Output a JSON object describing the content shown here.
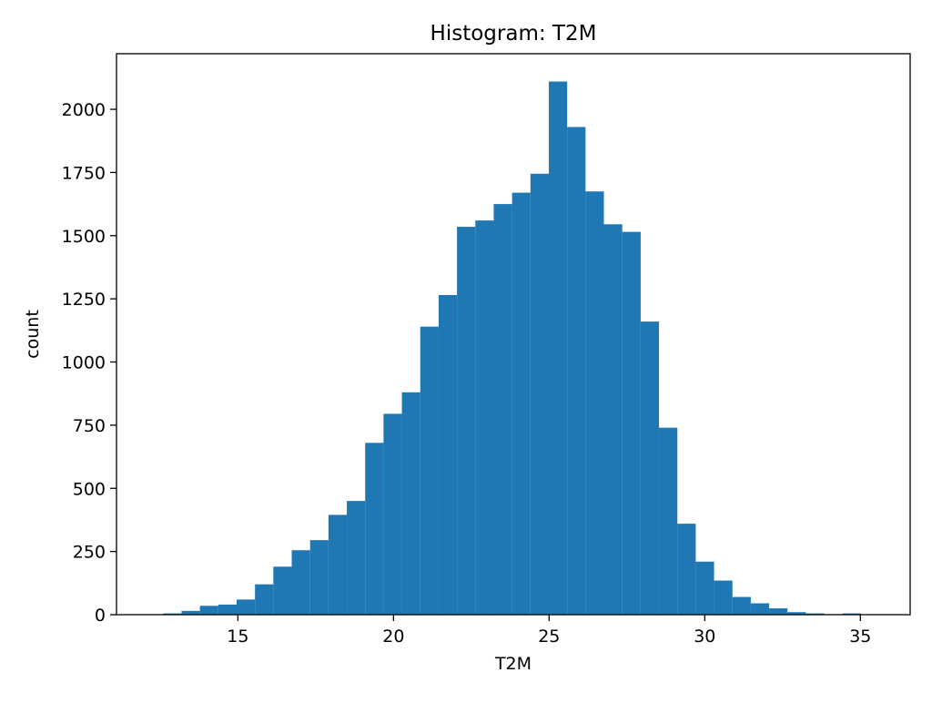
{
  "chart_data": {
    "type": "bar",
    "title": "Histogram: T2M",
    "xlabel": "T2M",
    "ylabel": "count",
    "xlim": [
      11.1,
      36.6
    ],
    "ylim": [
      0,
      2220
    ],
    "grid": false,
    "bar_color": "#1f77b4",
    "bin_width": 0.59,
    "bin_edges_start": 12.6,
    "bins": [
      {
        "x": 12.6,
        "count": 5
      },
      {
        "x": 13.19,
        "count": 15
      },
      {
        "x": 13.78,
        "count": 35
      },
      {
        "x": 14.37,
        "count": 40
      },
      {
        "x": 14.96,
        "count": 60
      },
      {
        "x": 15.55,
        "count": 120
      },
      {
        "x": 16.14,
        "count": 190
      },
      {
        "x": 16.73,
        "count": 255
      },
      {
        "x": 17.32,
        "count": 295
      },
      {
        "x": 17.91,
        "count": 395
      },
      {
        "x": 18.5,
        "count": 450
      },
      {
        "x": 19.09,
        "count": 680
      },
      {
        "x": 19.68,
        "count": 795
      },
      {
        "x": 20.27,
        "count": 880
      },
      {
        "x": 20.86,
        "count": 1140
      },
      {
        "x": 21.45,
        "count": 1265
      },
      {
        "x": 22.04,
        "count": 1535
      },
      {
        "x": 22.63,
        "count": 1560
      },
      {
        "x": 23.22,
        "count": 1625
      },
      {
        "x": 23.81,
        "count": 1670
      },
      {
        "x": 24.4,
        "count": 1745
      },
      {
        "x": 24.99,
        "count": 2110
      },
      {
        "x": 25.58,
        "count": 1930
      },
      {
        "x": 26.17,
        "count": 1675
      },
      {
        "x": 26.76,
        "count": 1545
      },
      {
        "x": 27.35,
        "count": 1515
      },
      {
        "x": 27.94,
        "count": 1160
      },
      {
        "x": 28.53,
        "count": 740
      },
      {
        "x": 29.12,
        "count": 360
      },
      {
        "x": 29.71,
        "count": 210
      },
      {
        "x": 30.3,
        "count": 135
      },
      {
        "x": 30.89,
        "count": 70
      },
      {
        "x": 31.48,
        "count": 45
      },
      {
        "x": 32.07,
        "count": 25
      },
      {
        "x": 32.66,
        "count": 10
      },
      {
        "x": 33.25,
        "count": 5
      },
      {
        "x": 33.84,
        "count": 2
      },
      {
        "x": 34.43,
        "count": 5
      },
      {
        "x": 35.02,
        "count": 1
      }
    ],
    "xticks": [
      {
        "value": 15,
        "label": "15"
      },
      {
        "value": 20,
        "label": "20"
      },
      {
        "value": 25,
        "label": "25"
      },
      {
        "value": 30,
        "label": "30"
      },
      {
        "value": 35,
        "label": "35"
      }
    ],
    "yticks": [
      {
        "value": 0,
        "label": "0"
      },
      {
        "value": 250,
        "label": "250"
      },
      {
        "value": 500,
        "label": "500"
      },
      {
        "value": 750,
        "label": "750"
      },
      {
        "value": 1000,
        "label": "1000"
      },
      {
        "value": 1250,
        "label": "1250"
      },
      {
        "value": 1500,
        "label": "1500"
      },
      {
        "value": 1750,
        "label": "1750"
      },
      {
        "value": 2000,
        "label": "2000"
      }
    ]
  }
}
